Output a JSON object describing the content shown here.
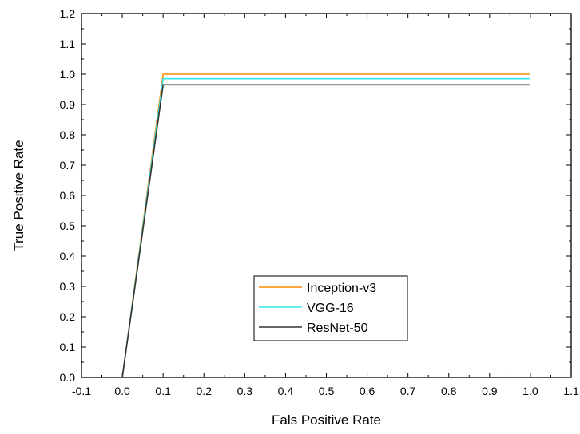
{
  "chart_data": {
    "type": "line",
    "title": "",
    "xlabel": "Fals Positive Rate",
    "ylabel": "True Positive Rate",
    "xlim": [
      -0.1,
      1.1
    ],
    "ylim": [
      0.0,
      1.2
    ],
    "xticks": [
      "-0.1",
      "0.0",
      "0.1",
      "0.2",
      "0.3",
      "0.4",
      "0.5",
      "0.6",
      "0.7",
      "0.8",
      "0.9",
      "1.0",
      "1.1"
    ],
    "yticks": [
      "0.0",
      "0.1",
      "0.2",
      "0.3",
      "0.4",
      "0.5",
      "0.6",
      "0.7",
      "0.8",
      "0.9",
      "1.0",
      "1.1",
      "1.2"
    ],
    "grid": false,
    "legend_position": "bottom-center",
    "series": [
      {
        "name": "Inception-v3",
        "color": "#ff8c00",
        "x": [
          0.0,
          0.1,
          1.0
        ],
        "y": [
          0.0,
          1.0,
          1.0
        ]
      },
      {
        "name": "VGG-16",
        "color": "#33e6e6",
        "x": [
          0.0,
          0.1,
          1.0
        ],
        "y": [
          0.0,
          0.985,
          0.985
        ]
      },
      {
        "name": "ResNet-50",
        "color": "#333333",
        "x": [
          0.0,
          0.1,
          1.0
        ],
        "y": [
          0.0,
          0.965,
          0.965
        ]
      }
    ]
  }
}
